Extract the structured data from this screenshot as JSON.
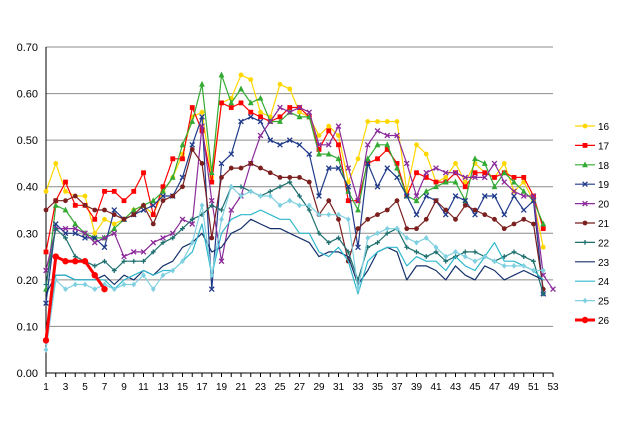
{
  "chart_data": {
    "type": "line",
    "title": "",
    "xlabel": "",
    "ylabel": "",
    "xlim": [
      1,
      53
    ],
    "ylim": [
      0.0,
      0.7
    ],
    "y_ticks": [
      "0.00",
      "0.10",
      "0.20",
      "0.30",
      "0.40",
      "0.50",
      "0.60",
      "0.70"
    ],
    "x_ticks": [
      1,
      3,
      5,
      7,
      9,
      11,
      13,
      15,
      17,
      19,
      21,
      23,
      25,
      27,
      29,
      31,
      33,
      35,
      37,
      39,
      41,
      43,
      45,
      47,
      49,
      51,
      53
    ],
    "grid": "horizontal",
    "legend": "right",
    "series": [
      {
        "name": "16",
        "color": "#FFD700",
        "marker": "circle",
        "values": [
          0.39,
          0.45,
          0.39,
          0.38,
          0.38,
          0.3,
          0.33,
          0.32,
          0.33,
          0.35,
          0.36,
          0.34,
          0.39,
          0.42,
          0.47,
          0.55,
          0.56,
          0.42,
          0.58,
          0.59,
          0.64,
          0.63,
          0.56,
          0.55,
          0.62,
          0.61,
          0.56,
          0.55,
          0.51,
          0.53,
          0.51,
          0.41,
          0.46,
          0.54,
          0.54,
          0.54,
          0.54,
          0.39,
          0.49,
          0.47,
          0.41,
          0.42,
          0.45,
          0.41,
          0.45,
          0.43,
          0.42,
          0.45,
          0.39,
          0.41,
          0.37,
          0.27
        ]
      },
      {
        "name": "17",
        "color": "#FF0000",
        "marker": "square",
        "values": [
          0.26,
          0.37,
          0.41,
          0.36,
          0.36,
          0.33,
          0.39,
          0.39,
          0.37,
          0.39,
          0.43,
          0.34,
          0.4,
          0.46,
          0.46,
          0.57,
          0.52,
          0.41,
          0.58,
          0.57,
          0.58,
          0.56,
          0.55,
          0.54,
          0.55,
          0.57,
          0.57,
          0.55,
          0.48,
          0.52,
          0.49,
          0.37,
          0.37,
          0.45,
          0.46,
          0.48,
          0.45,
          0.38,
          0.43,
          0.42,
          0.41,
          0.41,
          0.43,
          0.4,
          0.43,
          0.43,
          0.42,
          0.43,
          0.42,
          0.42,
          0.38,
          0.31
        ]
      },
      {
        "name": "18",
        "color": "#33AA33",
        "marker": "triangle",
        "values": [
          0.18,
          0.36,
          0.35,
          0.32,
          0.3,
          0.29,
          0.29,
          0.31,
          0.33,
          0.35,
          0.36,
          0.37,
          0.39,
          0.42,
          0.49,
          0.54,
          0.62,
          0.43,
          0.64,
          0.58,
          0.61,
          0.58,
          0.59,
          0.54,
          0.54,
          0.56,
          0.55,
          0.55,
          0.47,
          0.47,
          0.46,
          0.39,
          0.35,
          0.46,
          0.49,
          0.49,
          0.44,
          0.38,
          0.37,
          0.39,
          0.4,
          0.41,
          0.41,
          0.37,
          0.46,
          0.45,
          0.4,
          0.43,
          0.41,
          0.39,
          0.37,
          0.32
        ]
      },
      {
        "name": "19",
        "color": "#1F3A8A",
        "marker": "x",
        "values": [
          0.15,
          0.32,
          0.3,
          0.3,
          0.29,
          0.29,
          0.27,
          0.35,
          0.33,
          0.34,
          0.35,
          0.36,
          0.38,
          0.38,
          0.42,
          0.49,
          0.55,
          0.18,
          0.45,
          0.47,
          0.54,
          0.55,
          0.54,
          0.5,
          0.49,
          0.5,
          0.49,
          0.47,
          0.38,
          0.44,
          0.44,
          0.4,
          0.27,
          0.45,
          0.4,
          0.44,
          0.42,
          0.38,
          0.34,
          0.38,
          0.37,
          0.34,
          0.38,
          0.37,
          0.34,
          0.38,
          0.38,
          0.34,
          0.38,
          0.35,
          0.37,
          0.17
        ]
      },
      {
        "name": "20",
        "color": "#8B2A9A",
        "marker": "x",
        "values": [
          0.22,
          0.31,
          0.31,
          0.31,
          0.3,
          0.28,
          0.29,
          0.3,
          0.25,
          0.26,
          0.26,
          0.28,
          0.29,
          0.3,
          0.33,
          0.32,
          0.53,
          0.37,
          0.24,
          0.35,
          0.38,
          0.45,
          0.51,
          0.54,
          0.57,
          0.56,
          0.57,
          0.56,
          0.49,
          0.49,
          0.53,
          0.44,
          0.37,
          0.49,
          0.52,
          0.51,
          0.51,
          0.45,
          0.38,
          0.43,
          0.44,
          0.43,
          0.43,
          0.42,
          0.42,
          0.42,
          0.45,
          0.41,
          0.39,
          0.38,
          0.38,
          0.21,
          0.18
        ]
      },
      {
        "name": "21",
        "color": "#7B1F1F",
        "marker": "circle",
        "values": [
          0.35,
          0.37,
          0.37,
          0.38,
          0.36,
          0.35,
          0.35,
          0.34,
          0.33,
          0.34,
          0.36,
          0.32,
          0.37,
          0.38,
          0.4,
          0.48,
          0.45,
          0.29,
          0.42,
          0.44,
          0.44,
          0.45,
          0.44,
          0.43,
          0.42,
          0.42,
          0.42,
          0.41,
          0.34,
          0.37,
          0.33,
          0.24,
          0.31,
          0.33,
          0.34,
          0.35,
          0.37,
          0.31,
          0.31,
          0.33,
          0.37,
          0.35,
          0.33,
          0.36,
          0.35,
          0.34,
          0.33,
          0.31,
          0.32,
          0.33,
          0.32,
          0.18
        ]
      },
      {
        "name": "22",
        "color": "#1F6F6F",
        "marker": "plus",
        "values": [
          0.19,
          0.31,
          0.29,
          0.25,
          0.24,
          0.23,
          0.24,
          0.22,
          0.24,
          0.24,
          0.24,
          0.26,
          0.28,
          0.29,
          0.31,
          0.33,
          0.34,
          0.36,
          0.35,
          0.4,
          0.4,
          0.39,
          0.38,
          0.39,
          0.4,
          0.41,
          0.38,
          0.35,
          0.3,
          0.28,
          0.29,
          0.26,
          0.2,
          0.27,
          0.28,
          0.3,
          0.31,
          0.27,
          0.26,
          0.25,
          0.26,
          0.24,
          0.25,
          0.26,
          0.26,
          0.25,
          0.24,
          0.25,
          0.26,
          0.25,
          0.24,
          0.17
        ]
      },
      {
        "name": "23",
        "color": "#15306B",
        "marker": "none",
        "values": [
          0.17,
          0.21,
          0.21,
          0.2,
          0.2,
          0.2,
          0.21,
          0.19,
          0.21,
          0.2,
          0.22,
          0.21,
          0.23,
          0.24,
          0.27,
          0.28,
          0.3,
          0.26,
          0.27,
          0.3,
          0.31,
          0.33,
          0.32,
          0.31,
          0.31,
          0.3,
          0.29,
          0.28,
          0.25,
          0.26,
          0.26,
          0.25,
          0.19,
          0.22,
          0.26,
          0.27,
          0.26,
          0.2,
          0.23,
          0.23,
          0.22,
          0.2,
          0.23,
          0.21,
          0.2,
          0.23,
          0.22,
          0.2,
          0.21,
          0.22,
          0.21,
          0.2
        ]
      },
      {
        "name": "24",
        "color": "#2FB8CC",
        "marker": "none",
        "values": [
          0.06,
          0.21,
          0.21,
          0.2,
          0.2,
          0.2,
          0.2,
          0.18,
          0.2,
          0.21,
          0.22,
          0.21,
          0.22,
          0.22,
          0.24,
          0.26,
          0.32,
          0.21,
          0.3,
          0.33,
          0.34,
          0.34,
          0.35,
          0.34,
          0.33,
          0.33,
          0.3,
          0.3,
          0.26,
          0.25,
          0.27,
          0.24,
          0.17,
          0.24,
          0.26,
          0.27,
          0.27,
          0.23,
          0.25,
          0.24,
          0.24,
          0.22,
          0.25,
          0.23,
          0.22,
          0.25,
          0.28,
          0.24,
          0.24,
          0.23,
          0.22,
          0.2
        ]
      },
      {
        "name": "25",
        "color": "#7FD0E0",
        "marker": "diamond",
        "values": [
          0.05,
          0.2,
          0.18,
          0.19,
          0.19,
          0.18,
          0.19,
          0.18,
          0.19,
          0.19,
          0.21,
          0.18,
          0.21,
          0.22,
          0.24,
          0.28,
          0.36,
          0.21,
          0.33,
          0.4,
          0.38,
          0.39,
          0.38,
          0.38,
          0.36,
          0.37,
          0.36,
          0.36,
          0.34,
          0.34,
          0.34,
          0.33,
          0.18,
          0.29,
          0.3,
          0.31,
          0.31,
          0.29,
          0.28,
          0.29,
          0.27,
          0.25,
          0.26,
          0.25,
          0.24,
          0.25,
          0.24,
          0.23,
          0.23,
          0.23,
          0.22,
          0.22
        ]
      },
      {
        "name": "26",
        "color": "#FF0000",
        "marker": "circle",
        "bold": true,
        "values": [
          0.07,
          0.25,
          0.24,
          0.24,
          0.24,
          0.21,
          0.18
        ]
      }
    ]
  }
}
